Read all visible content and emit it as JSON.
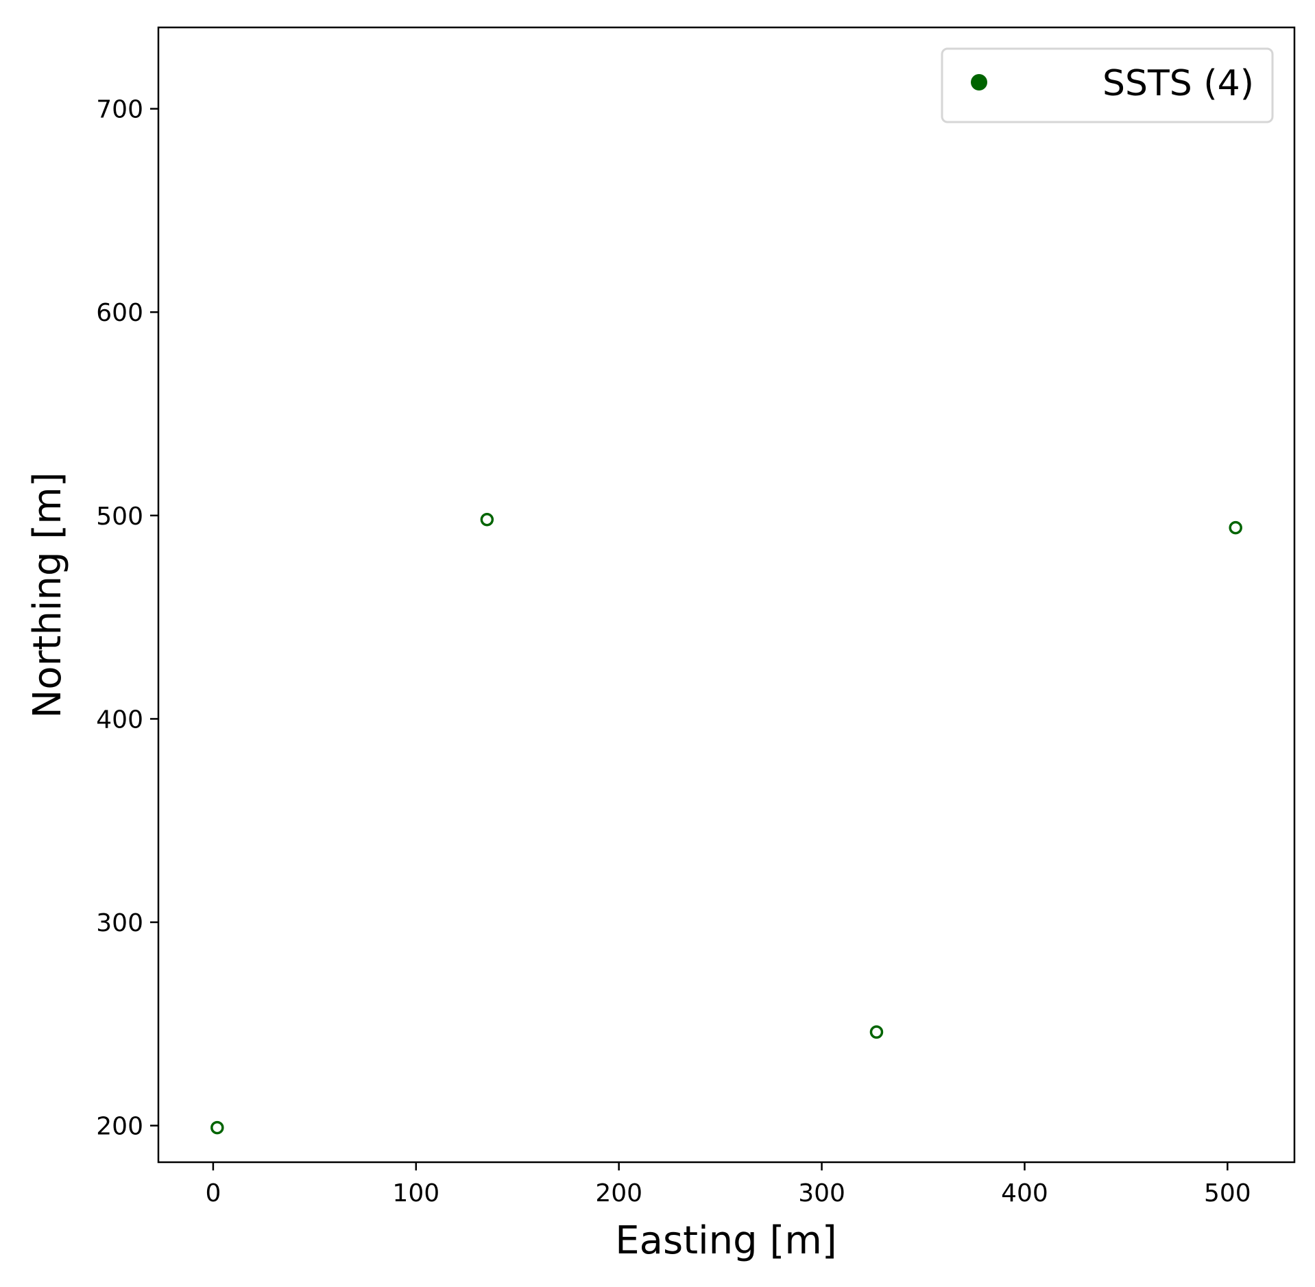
{
  "chart_data": {
    "type": "scatter",
    "xlabel": "Easting [m]",
    "ylabel": "Northing [m]",
    "xlim": [
      -27,
      533
    ],
    "ylim": [
      182,
      740
    ],
    "xticks": [
      0,
      100,
      200,
      300,
      400,
      500
    ],
    "yticks": [
      200,
      300,
      400,
      500,
      600,
      700
    ],
    "grid": false,
    "legend_position": "top-right",
    "series": [
      {
        "name": "SSTS (4)",
        "marker": "hollow-circle",
        "color": "#006400",
        "points": [
          {
            "x": 2,
            "y": 199
          },
          {
            "x": 135,
            "y": 498
          },
          {
            "x": 327,
            "y": 246
          },
          {
            "x": 504,
            "y": 494
          }
        ]
      }
    ]
  }
}
